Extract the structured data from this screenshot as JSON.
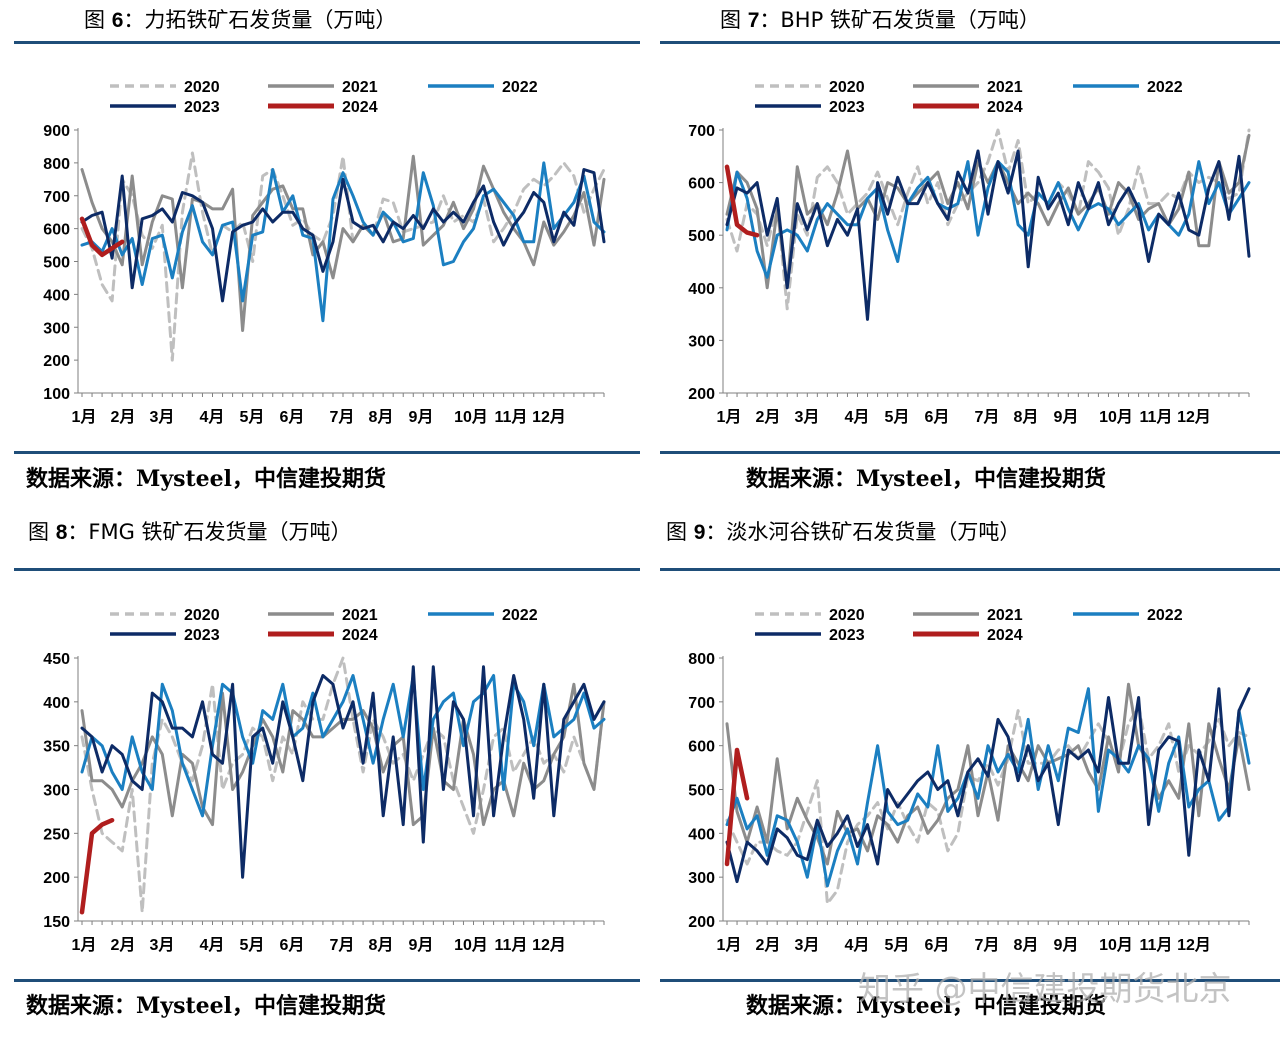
{
  "page": {
    "source_text": "数据来源：Mysteel，中信建投期货",
    "watermark": "知乎 @中信建投期货北京"
  },
  "legend": {
    "s2020": "2020",
    "s2021": "2021",
    "s2022": "2022",
    "s2023": "2023",
    "s2024": "2024"
  },
  "colors": {
    "s2020": "#bfbfbf",
    "s2021": "#8c8c8c",
    "s2022": "#1b7fc1",
    "s2023": "#0d2b66",
    "s2024": "#b01e1e",
    "rule": "#1f4e79"
  },
  "charts": [
    {
      "label": "图",
      "number": "6",
      "name": "：力拓铁矿石发货量（万吨）"
    },
    {
      "label": "图",
      "number": "7",
      "name": "：BHP 铁矿石发货量（万吨）"
    },
    {
      "label": "图",
      "number": "8",
      "name": "：FMG 铁矿石发货量（万吨）"
    },
    {
      "label": "图",
      "number": "9",
      "name": "：淡水河谷铁矿石发货量（万吨）"
    }
  ],
  "chart_data": [
    {
      "type": "line",
      "title": "力拓铁矿石发货量（万吨）",
      "xlabel": "",
      "ylabel": "万吨",
      "ylim": [
        100,
        900
      ],
      "yticks": [
        100,
        200,
        300,
        400,
        500,
        600,
        700,
        800,
        900
      ],
      "month_labels": [
        "1月",
        "2月",
        "3月",
        "4月",
        "5月",
        "6月",
        "7月",
        "8月",
        "9月",
        "10月",
        "11月",
        "12月"
      ],
      "weeks_on_axis": 53,
      "series": [
        {
          "name": "2020",
          "values": [
            600,
            540,
            430,
            380,
            750,
            700,
            580,
            540,
            610,
            200,
            650,
            830,
            650,
            520,
            610,
            590,
            620,
            500,
            760,
            780,
            700,
            610,
            630,
            580,
            560,
            640,
            820,
            560,
            610,
            580,
            690,
            680,
            590,
            600,
            610,
            620,
            700,
            620,
            640,
            620,
            690,
            560,
            600,
            650,
            720,
            750,
            730,
            760,
            800,
            760,
            650,
            720,
            780
          ]
        },
        {
          "name": "2021",
          "values": [
            780,
            680,
            600,
            560,
            490,
            760,
            490,
            620,
            700,
            690,
            420,
            690,
            680,
            660,
            660,
            720,
            290,
            640,
            680,
            720,
            730,
            660,
            660,
            520,
            560,
            450,
            600,
            560,
            610,
            580,
            650,
            560,
            570,
            820,
            550,
            580,
            610,
            680,
            600,
            660,
            790,
            720,
            650,
            600,
            560,
            490,
            620,
            550,
            590,
            640,
            710,
            550,
            750
          ]
        },
        {
          "name": "2022",
          "values": [
            550,
            560,
            530,
            600,
            520,
            570,
            430,
            570,
            580,
            450,
            590,
            670,
            560,
            520,
            610,
            620,
            380,
            580,
            590,
            780,
            650,
            700,
            580,
            570,
            320,
            690,
            770,
            700,
            620,
            580,
            650,
            620,
            560,
            570,
            770,
            670,
            490,
            500,
            560,
            600,
            700,
            720,
            680,
            640,
            560,
            560,
            800,
            600,
            640,
            680,
            760,
            620,
            590
          ]
        },
        {
          "name": "2023",
          "values": [
            620,
            640,
            650,
            510,
            760,
            420,
            630,
            640,
            660,
            620,
            710,
            700,
            680,
            600,
            380,
            590,
            610,
            620,
            660,
            620,
            650,
            650,
            600,
            580,
            470,
            560,
            750,
            620,
            600,
            610,
            560,
            620,
            600,
            640,
            600,
            660,
            620,
            650,
            620,
            680,
            730,
            620,
            550,
            610,
            650,
            710,
            680,
            560,
            650,
            610,
            780,
            770,
            560
          ]
        },
        {
          "name": "2024",
          "values": [
            630,
            550,
            520,
            540,
            560
          ]
        }
      ]
    },
    {
      "type": "line",
      "title": "BHP 铁矿石发货量（万吨）",
      "xlabel": "",
      "ylabel": "万吨",
      "ylim": [
        200,
        700
      ],
      "yticks": [
        200,
        300,
        400,
        500,
        600,
        700
      ],
      "month_labels": [
        "1月",
        "2月",
        "3月",
        "4月",
        "5月",
        "6月",
        "7月",
        "8月",
        "9月",
        "10月",
        "11月",
        "12月"
      ],
      "weeks_on_axis": 53,
      "series": [
        {
          "name": "2020",
          "values": [
            530,
            470,
            560,
            540,
            480,
            560,
            360,
            540,
            500,
            610,
            630,
            600,
            540,
            560,
            580,
            620,
            570,
            520,
            580,
            630,
            560,
            600,
            520,
            560,
            580,
            600,
            640,
            700,
            620,
            680,
            560,
            580,
            560,
            600,
            580,
            540,
            640,
            620,
            590,
            500,
            550,
            630,
            560,
            560,
            580,
            570,
            620,
            600,
            610,
            600,
            570,
            580,
            700
          ]
        },
        {
          "name": "2021",
          "values": [
            540,
            620,
            600,
            550,
            400,
            550,
            400,
            630,
            540,
            560,
            520,
            580,
            660,
            550,
            570,
            530,
            600,
            590,
            560,
            580,
            600,
            620,
            560,
            600,
            550,
            640,
            600,
            640,
            600,
            560,
            580,
            560,
            520,
            560,
            590,
            540,
            560,
            590,
            540,
            600,
            580,
            530,
            550,
            560,
            520,
            550,
            620,
            480,
            480,
            640,
            580,
            600,
            690
          ]
        },
        {
          "name": "2022",
          "values": [
            510,
            620,
            570,
            470,
            420,
            500,
            510,
            500,
            470,
            530,
            560,
            540,
            520,
            520,
            570,
            590,
            510,
            450,
            560,
            590,
            610,
            560,
            550,
            560,
            640,
            500,
            590,
            640,
            620,
            520,
            500,
            580,
            560,
            600,
            550,
            510,
            550,
            560,
            550,
            520,
            540,
            560,
            510,
            540,
            520,
            500,
            540,
            640,
            560,
            600,
            540,
            570,
            600
          ]
        },
        {
          "name": "2023",
          "values": [
            520,
            590,
            580,
            600,
            500,
            570,
            400,
            560,
            510,
            560,
            480,
            530,
            500,
            550,
            340,
            600,
            540,
            610,
            560,
            560,
            600,
            560,
            530,
            620,
            580,
            660,
            540,
            640,
            580,
            660,
            440,
            610,
            550,
            580,
            520,
            600,
            550,
            600,
            520,
            560,
            590,
            550,
            450,
            540,
            520,
            580,
            510,
            500,
            590,
            640,
            530,
            650,
            460
          ]
        },
        {
          "name": "2024",
          "values": [
            630,
            520,
            505,
            500
          ]
        }
      ]
    },
    {
      "type": "line",
      "title": "FMG 铁矿石发货量（万吨）",
      "xlabel": "",
      "ylabel": "万吨",
      "ylim": [
        150,
        450
      ],
      "yticks": [
        150,
        200,
        250,
        300,
        350,
        400,
        450
      ],
      "month_labels": [
        "1月",
        "2月",
        "3月",
        "4月",
        "5月",
        "6月",
        "7月",
        "8月",
        "9月",
        "10月",
        "11月",
        "12月"
      ],
      "weeks_on_axis": 53,
      "series": [
        {
          "name": "2020",
          "values": [
            360,
            300,
            250,
            240,
            230,
            300,
            160,
            330,
            380,
            360,
            330,
            310,
            350,
            420,
            300,
            330,
            340,
            370,
            360,
            310,
            360,
            340,
            400,
            380,
            380,
            420,
            450,
            380,
            320,
            380,
            360,
            330,
            340,
            310,
            340,
            370,
            360,
            310,
            280,
            250,
            300,
            360,
            370,
            320,
            340,
            360,
            330,
            340,
            320,
            360,
            330,
            300,
            400
          ]
        },
        {
          "name": "2021",
          "values": [
            390,
            310,
            310,
            300,
            280,
            310,
            330,
            360,
            340,
            270,
            340,
            330,
            280,
            260,
            410,
            300,
            320,
            350,
            380,
            360,
            320,
            390,
            380,
            360,
            360,
            370,
            380,
            380,
            390,
            370,
            320,
            350,
            360,
            260,
            270,
            370,
            310,
            300,
            380,
            340,
            260,
            300,
            310,
            270,
            330,
            300,
            310,
            340,
            360,
            420,
            330,
            300,
            400
          ]
        },
        {
          "name": "2022",
          "values": [
            320,
            360,
            350,
            320,
            300,
            360,
            320,
            300,
            420,
            390,
            330,
            300,
            270,
            350,
            420,
            410,
            360,
            330,
            390,
            380,
            420,
            360,
            370,
            410,
            360,
            380,
            400,
            430,
            380,
            330,
            380,
            420,
            360,
            430,
            300,
            380,
            400,
            410,
            350,
            400,
            410,
            430,
            300,
            420,
            400,
            350,
            420,
            360,
            370,
            380,
            410,
            370,
            380
          ]
        },
        {
          "name": "2023",
          "values": [
            370,
            360,
            320,
            350,
            340,
            310,
            300,
            410,
            400,
            370,
            370,
            360,
            400,
            340,
            330,
            420,
            200,
            360,
            370,
            330,
            400,
            360,
            310,
            400,
            430,
            420,
            370,
            400,
            330,
            410,
            270,
            360,
            260,
            440,
            240,
            440,
            300,
            400,
            380,
            270,
            440,
            270,
            360,
            430,
            380,
            290,
            420,
            270,
            380,
            400,
            420,
            380,
            400
          ]
        },
        {
          "name": "2024",
          "values": [
            160,
            250,
            260,
            265
          ]
        }
      ]
    },
    {
      "type": "line",
      "title": "淡水河谷铁矿石发货量（万吨）",
      "xlabel": "",
      "ylabel": "万吨",
      "ylim": [
        200,
        800
      ],
      "yticks": [
        200,
        300,
        400,
        500,
        600,
        700,
        800
      ],
      "month_labels": [
        "1月",
        "2月",
        "3月",
        "4月",
        "5月",
        "6月",
        "7月",
        "8月",
        "9月",
        "10月",
        "11月",
        "12月"
      ],
      "weeks_on_axis": 53,
      "series": [
        {
          "name": "2020",
          "values": [
            430,
            380,
            330,
            380,
            380,
            360,
            350,
            380,
            450,
            520,
            240,
            270,
            380,
            420,
            440,
            470,
            410,
            470,
            420,
            380,
            470,
            450,
            360,
            400,
            530,
            520,
            560,
            510,
            570,
            680,
            560,
            560,
            560,
            590,
            600,
            570,
            610,
            650,
            610,
            560,
            650,
            690,
            570,
            600,
            650,
            540,
            600,
            580,
            610,
            660,
            600,
            630,
            620
          ]
        },
        {
          "name": "2021",
          "values": [
            650,
            450,
            380,
            460,
            380,
            570,
            410,
            480,
            430,
            390,
            330,
            450,
            400,
            410,
            360,
            440,
            420,
            380,
            440,
            460,
            400,
            430,
            480,
            500,
            600,
            440,
            540,
            430,
            600,
            560,
            520,
            600,
            560,
            570,
            580,
            600,
            540,
            500,
            620,
            540,
            740,
            600,
            560,
            480,
            520,
            480,
            650,
            440,
            650,
            570,
            500,
            620,
            500
          ]
        },
        {
          "name": "2022",
          "values": [
            420,
            480,
            410,
            440,
            350,
            440,
            430,
            380,
            300,
            420,
            280,
            360,
            410,
            330,
            470,
            600,
            450,
            420,
            430,
            490,
            460,
            600,
            450,
            480,
            540,
            480,
            600,
            540,
            580,
            540,
            660,
            500,
            600,
            520,
            640,
            630,
            730,
            450,
            590,
            570,
            540,
            600,
            570,
            450,
            560,
            620,
            460,
            500,
            520,
            430,
            460,
            680,
            560
          ]
        },
        {
          "name": "2023",
          "values": [
            380,
            290,
            380,
            360,
            330,
            410,
            390,
            350,
            340,
            430,
            370,
            400,
            440,
            370,
            420,
            330,
            500,
            460,
            490,
            520,
            540,
            500,
            520,
            440,
            540,
            570,
            530,
            660,
            620,
            520,
            600,
            520,
            560,
            420,
            590,
            570,
            590,
            540,
            710,
            560,
            560,
            710,
            420,
            590,
            620,
            610,
            350,
            590,
            520,
            730,
            440,
            680,
            730
          ]
        },
        {
          "name": "2024",
          "values": [
            330,
            590,
            480
          ]
        }
      ]
    }
  ]
}
